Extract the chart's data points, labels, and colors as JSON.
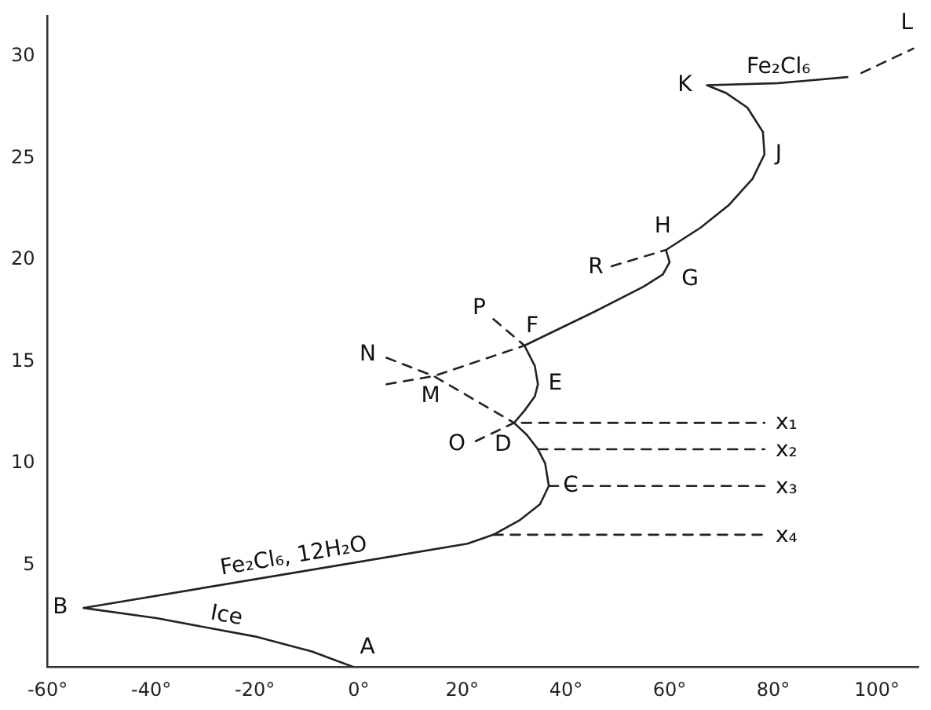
{
  "chart_data": {
    "type": "line",
    "marker": "none",
    "grid": false,
    "legend": false,
    "xlim": [
      -60,
      108
    ],
    "ylim": [
      0,
      32
    ],
    "xticks": [
      {
        "value": -60,
        "label": "-60°"
      },
      {
        "value": -40,
        "label": "-40°"
      },
      {
        "value": -20,
        "label": "-20°"
      },
      {
        "value": 0,
        "label": "0°"
      },
      {
        "value": 20,
        "label": "20°"
      },
      {
        "value": 40,
        "label": "40°"
      },
      {
        "value": 60,
        "label": "60°"
      },
      {
        "value": 80,
        "label": "80°"
      },
      {
        "value": 100,
        "label": "100°"
      }
    ],
    "yticks": [
      5,
      10,
      15,
      20,
      25,
      30
    ],
    "series": [
      {
        "color": "#222222",
        "line_style": "solid",
        "x": [
          -53,
          -39,
          -20,
          -9,
          -1
        ],
        "values": [
          2.9,
          2.4,
          1.5,
          0.76,
          0
        ]
      },
      {
        "color": "#222222",
        "line_style": "solid",
        "x": [
          -53,
          21,
          26,
          31,
          35,
          36.7,
          36,
          34.6,
          32.5,
          30,
          32,
          34,
          34.6,
          34,
          32,
          45,
          55,
          58.7,
          60,
          59.3,
          66,
          71.4,
          76,
          78.3,
          78,
          75,
          71,
          67.2,
          81,
          94.3
        ],
        "values": [
          2.9,
          6.06,
          6.5,
          7.2,
          8.0,
          8.9,
          10,
          10.7,
          11.4,
          12.0,
          12.6,
          13.3,
          13.9,
          14.8,
          15.8,
          17.4,
          18.7,
          19.3,
          19.9,
          20.5,
          21.6,
          22.7,
          24,
          25.2,
          26.3,
          27.5,
          28.2,
          28.6,
          28.7,
          29.0
        ]
      },
      {
        "color": "#222222",
        "line_style": "dashed",
        "x": [
          97,
          107
        ],
        "values": [
          29.2,
          30.4
        ]
      },
      {
        "color": "#222222",
        "line_style": "dashed",
        "x": [
          31.5,
          78.3
        ],
        "values": [
          12.0,
          12.0
        ]
      },
      {
        "color": "#222222",
        "line_style": "dashed",
        "x": [
          34.6,
          78.3
        ],
        "values": [
          10.7,
          10.7
        ]
      },
      {
        "color": "#222222",
        "line_style": "dashed",
        "x": [
          36.7,
          78.3
        ],
        "values": [
          8.9,
          8.9
        ]
      },
      {
        "color": "#222222",
        "line_style": "dashed",
        "x": [
          26,
          78.3
        ],
        "values": [
          6.5,
          6.5
        ]
      },
      {
        "color": "#222222",
        "line_style": "dashed",
        "x": [
          22.6,
          30
        ],
        "values": [
          11.1,
          12.0
        ]
      },
      {
        "color": "#222222",
        "line_style": "dashed",
        "x": [
          5.4,
          14.5,
          30
        ],
        "values": [
          15.2,
          14.3,
          12.0
        ]
      },
      {
        "color": "#222222",
        "line_style": "dashed",
        "x": [
          5.4,
          14.5,
          32
        ],
        "values": [
          13.9,
          14.3,
          15.8
        ]
      },
      {
        "color": "#222222",
        "line_style": "dashed",
        "x": [
          26,
          32
        ],
        "values": [
          17.1,
          15.8
        ]
      },
      {
        "color": "#222222",
        "line_style": "dashed",
        "x": [
          48.8,
          59.3
        ],
        "values": [
          19.7,
          20.5
        ]
      }
    ],
    "annotations": [
      {
        "text": "A",
        "x": -1,
        "y": 0
      },
      {
        "text": "B",
        "x": -53,
        "y": 2.9
      },
      {
        "text": "C",
        "x": 36.7,
        "y": 8.9
      },
      {
        "text": "D",
        "x": 30,
        "y": 12.0
      },
      {
        "text": "E",
        "x": 34.6,
        "y": 13.9
      },
      {
        "text": "F",
        "x": 32,
        "y": 15.8
      },
      {
        "text": "G",
        "x": 60,
        "y": 19.9
      },
      {
        "text": "H",
        "x": 59.3,
        "y": 20.5
      },
      {
        "text": "J",
        "x": 78.3,
        "y": 25.2
      },
      {
        "text": "K",
        "x": 67.2,
        "y": 28.6
      },
      {
        "text": "L",
        "x": 107,
        "y": 30.4
      },
      {
        "text": "M",
        "x": 14.5,
        "y": 14.3
      },
      {
        "text": "N",
        "x": 5.4,
        "y": 15.2
      },
      {
        "text": "O",
        "x": 22.6,
        "y": 11.1
      },
      {
        "text": "P",
        "x": 26,
        "y": 17.1
      },
      {
        "text": "R",
        "x": 48.8,
        "y": 19.7
      },
      {
        "text": "x₁",
        "x": 78.3,
        "y": 12.0
      },
      {
        "text": "x₂",
        "x": 78.3,
        "y": 10.7
      },
      {
        "text": "x₃",
        "x": 78.3,
        "y": 8.9
      },
      {
        "text": "x₄",
        "x": 78.3,
        "y": 6.5
      },
      {
        "text": "Ice",
        "x": -26,
        "y": 1.81
      },
      {
        "text": "Fe₂Cl₆, 12H₂O",
        "x": -12,
        "y": 4.65
      },
      {
        "text": "Fe₂Cl₆",
        "x": 81,
        "y": 28.7
      }
    ]
  }
}
